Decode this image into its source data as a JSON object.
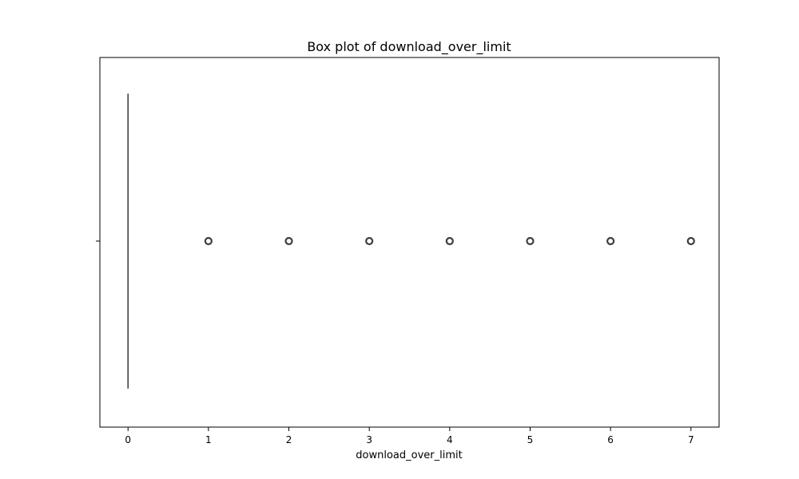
{
  "chart_data": {
    "type": "box",
    "title": "Box plot of download_over_limit",
    "xlabel": "download_over_limit",
    "ylabel": "",
    "orientation": "horizontal",
    "xlim": [
      -0.35,
      7.35
    ],
    "xticks": [
      0,
      1,
      2,
      3,
      4,
      5,
      6,
      7
    ],
    "xtick_labels": [
      "0",
      "1",
      "2",
      "3",
      "4",
      "5",
      "6",
      "7"
    ],
    "grid": false,
    "legend": "none",
    "box": {
      "q1": 0,
      "median": 0,
      "q3": 0,
      "whisker_low": 0,
      "whisker_high": 0
    },
    "outliers": [
      1,
      2,
      3,
      4,
      5,
      6,
      7
    ],
    "colors": {
      "box_line": "#3f3f3f",
      "axis": "#000000"
    }
  }
}
